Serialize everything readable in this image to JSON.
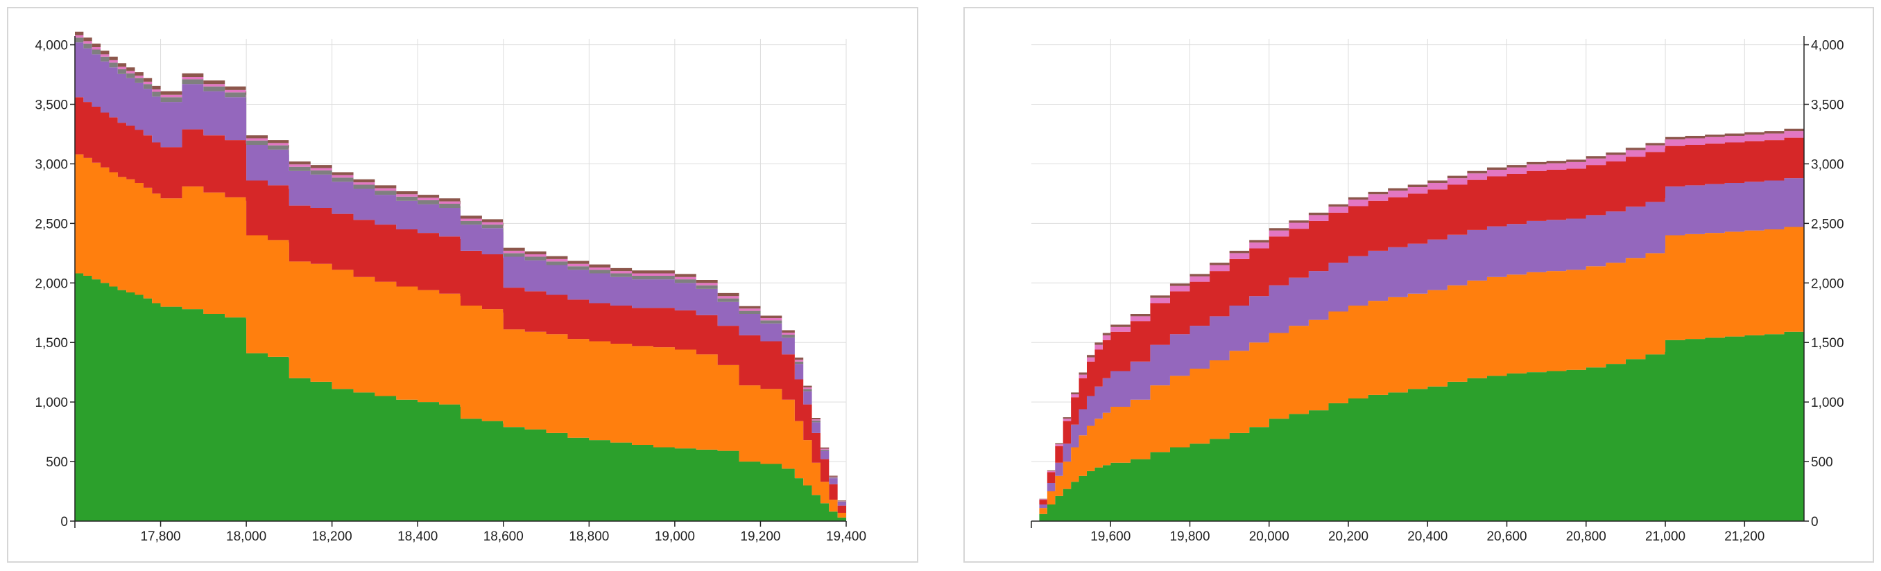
{
  "colors": {
    "green": "#2ca02c",
    "orange": "#ff7f0e",
    "red": "#d62728",
    "purple": "#9467bd",
    "gray": "#7f7f7f",
    "pink": "#e377c2",
    "brown": "#8c564b",
    "grid": "#dddddd",
    "axis": "#222222"
  },
  "chart_data": [
    {
      "type": "area",
      "subtype": "stacked-step",
      "title": "",
      "xlabel": "",
      "ylabel": "",
      "xlim": [
        17600,
        19400
      ],
      "ylim": [
        0,
        4050
      ],
      "x_ticks": [
        17800,
        18000,
        18200,
        18400,
        18600,
        18800,
        19000,
        19200,
        19400
      ],
      "x_tick_labels": [
        "17,800",
        "18,000",
        "18,200",
        "18,400",
        "18,600",
        "18,800",
        "19,000",
        "19,200",
        "19,400"
      ],
      "y_ticks": [
        0,
        500,
        1000,
        1500,
        2000,
        2500,
        3000,
        3500,
        4000
      ],
      "y_tick_labels": [
        "0",
        "500",
        "1,000",
        "1,500",
        "2,000",
        "2,500",
        "3,000",
        "3,500",
        "4,000"
      ],
      "y_axis_side": "left",
      "grid": true,
      "legend": "none",
      "x": [
        17600,
        17620,
        17640,
        17660,
        17680,
        17700,
        17720,
        17740,
        17760,
        17780,
        17800,
        17850,
        17900,
        17950,
        17999,
        18000,
        18050,
        18099,
        18100,
        18150,
        18200,
        18250,
        18300,
        18350,
        18400,
        18450,
        18499,
        18500,
        18550,
        18599,
        18600,
        18650,
        18700,
        18750,
        18800,
        18850,
        18900,
        18950,
        19000,
        19050,
        19100,
        19150,
        19200,
        19250,
        19280,
        19300,
        19320,
        19340,
        19360,
        19380,
        19400
      ],
      "series": [
        {
          "color_key": "green",
          "values": [
            2080,
            2060,
            2030,
            2000,
            1970,
            1940,
            1920,
            1900,
            1870,
            1830,
            1800,
            1780,
            1740,
            1710,
            1700,
            1410,
            1380,
            1370,
            1200,
            1170,
            1110,
            1080,
            1050,
            1020,
            1000,
            980,
            960,
            860,
            840,
            820,
            790,
            770,
            740,
            700,
            680,
            660,
            640,
            620,
            610,
            600,
            590,
            500,
            480,
            440,
            360,
            300,
            220,
            150,
            80,
            30,
            0
          ]
        },
        {
          "color_key": "orange",
          "values": [
            1000,
            990,
            980,
            970,
            960,
            950,
            950,
            940,
            930,
            920,
            910,
            1030,
            1020,
            1010,
            990,
            990,
            980,
            970,
            980,
            990,
            1000,
            970,
            960,
            950,
            940,
            930,
            930,
            950,
            940,
            930,
            820,
            820,
            830,
            830,
            830,
            830,
            830,
            840,
            830,
            800,
            720,
            640,
            630,
            580,
            480,
            380,
            270,
            180,
            100,
            40,
            0
          ]
        },
        {
          "color_key": "red",
          "values": [
            480,
            470,
            470,
            460,
            460,
            455,
            450,
            445,
            440,
            430,
            430,
            480,
            480,
            480,
            480,
            460,
            460,
            450,
            470,
            470,
            470,
            480,
            480,
            480,
            480,
            480,
            480,
            460,
            460,
            460,
            350,
            340,
            330,
            330,
            320,
            320,
            320,
            330,
            330,
            330,
            330,
            420,
            400,
            380,
            350,
            300,
            250,
            190,
            130,
            60,
            0
          ]
        },
        {
          "color_key": "purple",
          "values": [
            460,
            450,
            440,
            430,
            420,
            410,
            400,
            395,
            390,
            385,
            380,
            380,
            370,
            360,
            350,
            300,
            300,
            290,
            290,
            280,
            270,
            260,
            250,
            240,
            240,
            240,
            240,
            220,
            220,
            220,
            260,
            260,
            250,
            250,
            250,
            240,
            240,
            240,
            230,
            220,
            200,
            180,
            150,
            140,
            130,
            110,
            90,
            70,
            50,
            30,
            0
          ]
        },
        {
          "color_key": "gray",
          "values": [
            40,
            40,
            40,
            40,
            40,
            40,
            40,
            40,
            40,
            40,
            40,
            40,
            40,
            40,
            40,
            35,
            35,
            35,
            35,
            35,
            35,
            35,
            35,
            35,
            35,
            35,
            35,
            30,
            30,
            30,
            30,
            30,
            30,
            30,
            30,
            30,
            30,
            30,
            30,
            30,
            30,
            25,
            25,
            25,
            20,
            20,
            15,
            10,
            8,
            5,
            0
          ]
        },
        {
          "color_key": "pink",
          "values": [
            20,
            20,
            20,
            20,
            20,
            20,
            20,
            20,
            20,
            20,
            20,
            20,
            20,
            20,
            20,
            20,
            20,
            20,
            20,
            20,
            20,
            20,
            20,
            20,
            20,
            20,
            20,
            20,
            20,
            20,
            20,
            20,
            20,
            20,
            20,
            20,
            20,
            20,
            20,
            20,
            20,
            20,
            20,
            18,
            15,
            12,
            10,
            8,
            5,
            3,
            0
          ]
        },
        {
          "color_key": "brown",
          "values": [
            30,
            30,
            30,
            30,
            30,
            30,
            30,
            30,
            30,
            30,
            30,
            30,
            30,
            30,
            30,
            25,
            25,
            25,
            25,
            25,
            25,
            25,
            25,
            25,
            25,
            25,
            25,
            25,
            25,
            25,
            25,
            25,
            25,
            25,
            25,
            25,
            25,
            25,
            25,
            25,
            25,
            20,
            20,
            20,
            18,
            15,
            12,
            10,
            8,
            5,
            0
          ]
        }
      ]
    },
    {
      "type": "area",
      "subtype": "stacked-step",
      "title": "",
      "xlabel": "",
      "ylabel": "",
      "xlim": [
        19400,
        21350
      ],
      "ylim": [
        0,
        4050
      ],
      "x_ticks": [
        19600,
        19800,
        20000,
        20200,
        20400,
        20600,
        20800,
        21000,
        21200
      ],
      "x_tick_labels": [
        "19,600",
        "19,800",
        "20,000",
        "20,200",
        "20,400",
        "20,600",
        "20,800",
        "21,000",
        "21,200"
      ],
      "y_ticks": [
        0,
        500,
        1000,
        1500,
        2000,
        2500,
        3000,
        3500,
        4000
      ],
      "y_tick_labels": [
        "0",
        "500",
        "1,000",
        "1,500",
        "2,000",
        "2,500",
        "3,000",
        "3,500",
        "4,000"
      ],
      "y_axis_side": "right",
      "grid": true,
      "legend": "none",
      "x": [
        19400,
        19420,
        19440,
        19460,
        19480,
        19500,
        19520,
        19540,
        19560,
        19580,
        19600,
        19650,
        19700,
        19750,
        19800,
        19850,
        19900,
        19950,
        20000,
        20050,
        20100,
        20150,
        20200,
        20250,
        20300,
        20350,
        20400,
        20450,
        20500,
        20550,
        20600,
        20650,
        20700,
        20750,
        20800,
        20850,
        20900,
        20950,
        20999,
        21000,
        21050,
        21100,
        21150,
        21200,
        21250,
        21300,
        21350
      ],
      "series": [
        {
          "color_key": "green",
          "values": [
            0,
            60,
            140,
            210,
            270,
            330,
            380,
            420,
            450,
            470,
            490,
            520,
            580,
            620,
            650,
            690,
            740,
            790,
            860,
            900,
            930,
            990,
            1030,
            1060,
            1080,
            1110,
            1130,
            1170,
            1200,
            1220,
            1240,
            1250,
            1260,
            1270,
            1290,
            1320,
            1360,
            1400,
            1420,
            1520,
            1530,
            1540,
            1550,
            1560,
            1570,
            1590,
            1610
          ]
        },
        {
          "color_key": "orange",
          "values": [
            0,
            50,
            110,
            170,
            230,
            290,
            340,
            380,
            410,
            440,
            470,
            500,
            560,
            600,
            630,
            660,
            690,
            710,
            720,
            740,
            760,
            770,
            780,
            790,
            800,
            800,
            810,
            810,
            820,
            830,
            830,
            840,
            840,
            840,
            850,
            850,
            850,
            850,
            860,
            880,
            880,
            880,
            880,
            880,
            880,
            880,
            880
          ]
        },
        {
          "color_key": "purple",
          "values": [
            0,
            30,
            70,
            110,
            150,
            190,
            220,
            250,
            270,
            290,
            300,
            320,
            340,
            350,
            360,
            370,
            380,
            390,
            400,
            405,
            410,
            410,
            415,
            420,
            420,
            420,
            425,
            425,
            425,
            425,
            425,
            430,
            430,
            430,
            430,
            430,
            430,
            430,
            430,
            410,
            410,
            410,
            410,
            410,
            410,
            410,
            410
          ]
        },
        {
          "color_key": "red",
          "values": [
            0,
            40,
            90,
            140,
            190,
            230,
            260,
            290,
            310,
            320,
            330,
            340,
            350,
            360,
            370,
            380,
            390,
            400,
            410,
            410,
            420,
            420,
            420,
            420,
            420,
            420,
            420,
            420,
            420,
            420,
            420,
            420,
            420,
            420,
            420,
            420,
            420,
            420,
            420,
            340,
            340,
            340,
            340,
            340,
            340,
            340,
            350
          ]
        },
        {
          "color_key": "pink",
          "values": [
            0,
            5,
            10,
            15,
            20,
            25,
            30,
            35,
            40,
            40,
            40,
            40,
            45,
            45,
            45,
            50,
            50,
            50,
            50,
            50,
            50,
            50,
            55,
            55,
            55,
            55,
            55,
            55,
            55,
            55,
            55,
            55,
            55,
            55,
            55,
            55,
            55,
            55,
            55,
            55,
            55,
            55,
            55,
            55,
            55,
            55,
            55
          ]
        },
        {
          "color_key": "brown",
          "values": [
            0,
            3,
            6,
            9,
            12,
            15,
            18,
            20,
            20,
            20,
            20,
            20,
            20,
            20,
            20,
            20,
            20,
            20,
            20,
            20,
            20,
            20,
            20,
            20,
            20,
            20,
            20,
            20,
            20,
            20,
            20,
            20,
            20,
            20,
            20,
            20,
            20,
            20,
            20,
            20,
            20,
            20,
            20,
            20,
            20,
            20,
            20
          ]
        }
      ]
    }
  ]
}
